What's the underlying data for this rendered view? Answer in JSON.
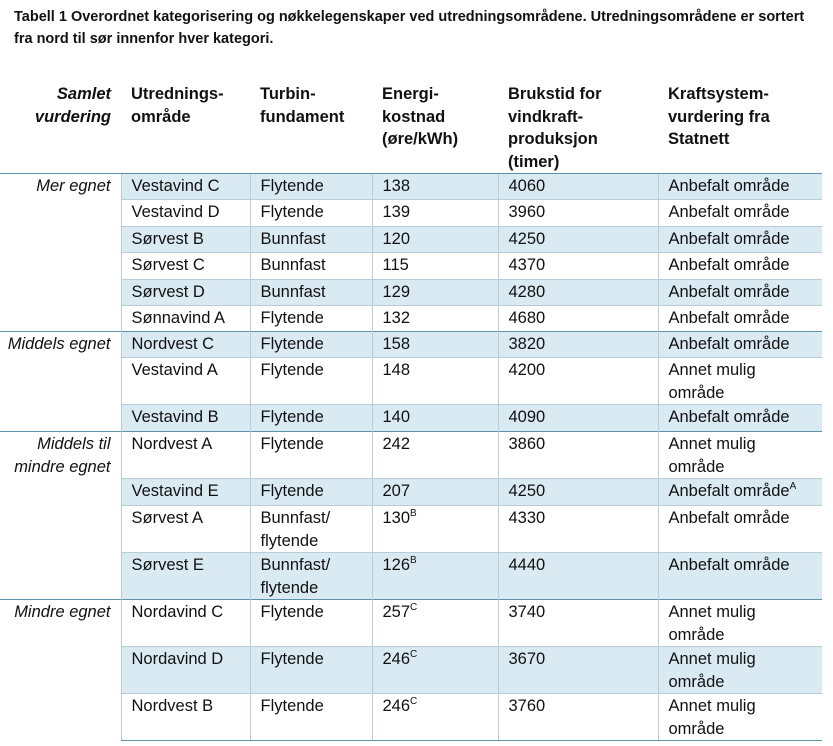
{
  "caption": "Tabell 1 Overordnet kategorisering og nøkkelegenskaper ved utredningsområdene. Utredningsområdene er sortert fra nord til sør innenfor hver kategori.",
  "headers": {
    "category": "Samlet vurdering",
    "area": "Utrednings-område",
    "foundation": "Turbin-fundament",
    "cost": "Energi-kostnad (øre/kWh)",
    "hours": "Brukstid for vindkraft-produksjon (timer)",
    "grid": "Kraftsystem-vurdering fra Statnett"
  },
  "groups": [
    {
      "category": "Mer egnet",
      "rows": [
        {
          "area": "Vestavind C",
          "foundation": "Flytende",
          "cost": "138",
          "cost_note": "",
          "hours": "4060",
          "grid": "Anbefalt område",
          "grid_note": ""
        },
        {
          "area": "Vestavind D",
          "foundation": "Flytende",
          "cost": "139",
          "cost_note": "",
          "hours": "3960",
          "grid": "Anbefalt område",
          "grid_note": ""
        },
        {
          "area": "Sørvest B",
          "foundation": "Bunnfast",
          "cost": "120",
          "cost_note": "",
          "hours": "4250",
          "grid": "Anbefalt område",
          "grid_note": ""
        },
        {
          "area": "Sørvest C",
          "foundation": "Bunnfast",
          "cost": "115",
          "cost_note": "",
          "hours": "4370",
          "grid": "Anbefalt område",
          "grid_note": ""
        },
        {
          "area": "Sørvest D",
          "foundation": "Bunnfast",
          "cost": "129",
          "cost_note": "",
          "hours": "4280",
          "grid": "Anbefalt område",
          "grid_note": ""
        },
        {
          "area": "Sønnavind A",
          "foundation": "Flytende",
          "cost": "132",
          "cost_note": "",
          "hours": "4680",
          "grid": "Anbefalt område",
          "grid_note": ""
        }
      ]
    },
    {
      "category": "Middels egnet",
      "rows": [
        {
          "area": "Nordvest C",
          "foundation": "Flytende",
          "cost": "158",
          "cost_note": "",
          "hours": "3820",
          "grid": "Anbefalt område",
          "grid_note": ""
        },
        {
          "area": "Vestavind A",
          "foundation": "Flytende",
          "cost": "148",
          "cost_note": "",
          "hours": "4200",
          "grid": "Annet mulig område",
          "grid_note": ""
        },
        {
          "area": "Vestavind B",
          "foundation": "Flytende",
          "cost": "140",
          "cost_note": "",
          "hours": "4090",
          "grid": "Anbefalt område",
          "grid_note": ""
        }
      ]
    },
    {
      "category": "Middels til mindre egnet",
      "rows": [
        {
          "area": "Nordvest A",
          "foundation": "Flytende",
          "cost": "242",
          "cost_note": "",
          "hours": "3860",
          "grid": "Annet mulig område",
          "grid_note": ""
        },
        {
          "area": "Vestavind E",
          "foundation": "Flytende",
          "cost": "207",
          "cost_note": "",
          "hours": "4250",
          "grid": "Anbefalt område",
          "grid_note": "A"
        },
        {
          "area": "Sørvest A",
          "foundation": "Bunnfast/ flytende",
          "cost": "130",
          "cost_note": "B",
          "hours": "4330",
          "grid": "Anbefalt område",
          "grid_note": ""
        },
        {
          "area": "Sørvest E",
          "foundation": "Bunnfast/ flytende",
          "cost": "126",
          "cost_note": "B",
          "hours": "4440",
          "grid": "Anbefalt område",
          "grid_note": ""
        }
      ]
    },
    {
      "category": "Mindre egnet",
      "rows": [
        {
          "area": "Nordavind C",
          "foundation": "Flytende",
          "cost": "257",
          "cost_note": "C",
          "hours": "3740",
          "grid": "Annet mulig område",
          "grid_note": ""
        },
        {
          "area": "Nordavind D",
          "foundation": "Flytende",
          "cost": "246",
          "cost_note": "C",
          "hours": "3670",
          "grid": "Annet mulig område",
          "grid_note": ""
        },
        {
          "area": "Nordvest B",
          "foundation": "Flytende",
          "cost": "246",
          "cost_note": "C",
          "hours": "3760",
          "grid": "Annet mulig område",
          "grid_note": ""
        }
      ]
    }
  ],
  "colors": {
    "row_shade": "#daeaf3",
    "rule": "#5d90ad",
    "grid": "#b7cdd9"
  }
}
